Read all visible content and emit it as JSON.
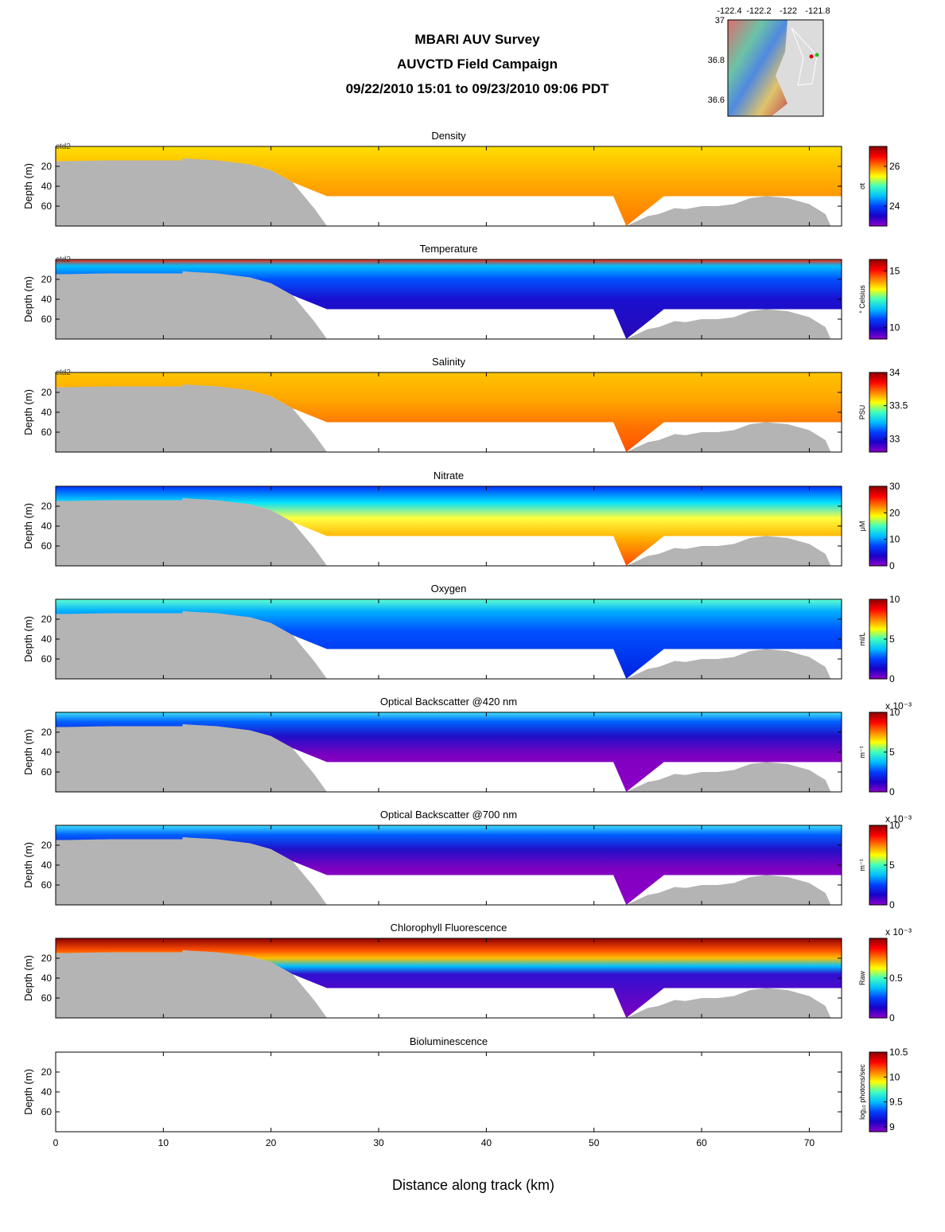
{
  "header": {
    "line1": "MBARI AUV Survey",
    "line2": "AUVCTD Field Campaign",
    "line3": "09/22/2010 15:01  to 09/23/2010 09:06 PDT"
  },
  "inset_map": {
    "x_ticks": [
      "-122.4",
      "-122.2",
      "-122",
      "-121.8"
    ],
    "y_ticks": [
      "37",
      "36.8",
      "36.6"
    ]
  },
  "chart_data": {
    "type": "heatmap",
    "xlabel": "Distance along track (km)",
    "ylabel": "Depth (m)",
    "xlim": [
      0,
      73
    ],
    "ylim": [
      0,
      80
    ],
    "x_ticks": [
      0,
      10,
      20,
      30,
      40,
      50,
      60,
      70
    ],
    "y_ticks": [
      20,
      40,
      60
    ],
    "vehicle_label": "ctd2",
    "panels": [
      {
        "title": "Density",
        "units": "σt",
        "cbar_ticks": [
          "26",
          "24"
        ],
        "cbar_range": [
          23,
          27
        ],
        "exp": "",
        "show_vehicle": true,
        "palette": "density"
      },
      {
        "title": "Temperature",
        "units": "° Celsius",
        "cbar_ticks": [
          "15",
          "10"
        ],
        "cbar_range": [
          9,
          16
        ],
        "exp": "",
        "show_vehicle": true,
        "palette": "temperature"
      },
      {
        "title": "Salinity",
        "units": "PSU",
        "cbar_ticks": [
          "34",
          "33.5",
          "33"
        ],
        "cbar_range": [
          32.8,
          34
        ],
        "exp": "",
        "show_vehicle": true,
        "palette": "salinity"
      },
      {
        "title": "Nitrate",
        "units": "μM",
        "cbar_ticks": [
          "30",
          "20",
          "10",
          "0"
        ],
        "cbar_range": [
          0,
          30
        ],
        "exp": "",
        "show_vehicle": false,
        "palette": "nitrate"
      },
      {
        "title": "Oxygen",
        "units": "ml/L",
        "cbar_ticks": [
          "10",
          "5",
          "0"
        ],
        "cbar_range": [
          0,
          10
        ],
        "exp": "",
        "show_vehicle": false,
        "palette": "oxygen"
      },
      {
        "title": "Optical Backscatter @420 nm",
        "units": "m⁻¹",
        "cbar_ticks": [
          "10",
          "5",
          "0"
        ],
        "cbar_range": [
          0,
          10
        ],
        "exp": "x 10⁻³",
        "show_vehicle": false,
        "palette": "backscatter"
      },
      {
        "title": "Optical Backscatter @700 nm",
        "units": "m⁻¹",
        "cbar_ticks": [
          "10",
          "5",
          "0"
        ],
        "cbar_range": [
          0,
          10
        ],
        "exp": "x 10⁻³",
        "show_vehicle": false,
        "palette": "backscatter"
      },
      {
        "title": "Chlorophyll Fluorescence",
        "units": "Raw",
        "cbar_ticks": [
          "0.5",
          "0"
        ],
        "cbar_range": [
          0,
          1
        ],
        "exp": "x 10⁻³",
        "show_vehicle": false,
        "palette": "chlorophyll"
      },
      {
        "title": "Bioluminescence",
        "units": "log₁₀ photons/sec",
        "cbar_ticks": [
          "10.5",
          "10",
          "9.5",
          "9"
        ],
        "cbar_range": [
          8.9,
          10.5
        ],
        "exp": "",
        "show_vehicle": false,
        "palette": "none"
      }
    ],
    "data_coverage": {
      "profile_bottom_m": 50,
      "seafloor_depth_m": [
        [
          0,
          15
        ],
        [
          5,
          14
        ],
        [
          11.8,
          14
        ],
        [
          11.8,
          12
        ],
        [
          15,
          14
        ],
        [
          18,
          18
        ],
        [
          20,
          24
        ],
        [
          22,
          36
        ],
        [
          24,
          62
        ],
        [
          25.2,
          80
        ],
        [
          53,
          80
        ],
        [
          55,
          70
        ],
        [
          56,
          68
        ],
        [
          57.5,
          62
        ],
        [
          58.5,
          63
        ],
        [
          60,
          60
        ],
        [
          61.5,
          60
        ],
        [
          63,
          58
        ],
        [
          64.5,
          52
        ],
        [
          66,
          50
        ],
        [
          68,
          52
        ],
        [
          70,
          58
        ],
        [
          71.5,
          68
        ],
        [
          72,
          80
        ]
      ]
    },
    "colors": {
      "missing": "#b4b4b4",
      "jet_low": "#8c00c8",
      "jet_high": "#8c0000"
    }
  }
}
